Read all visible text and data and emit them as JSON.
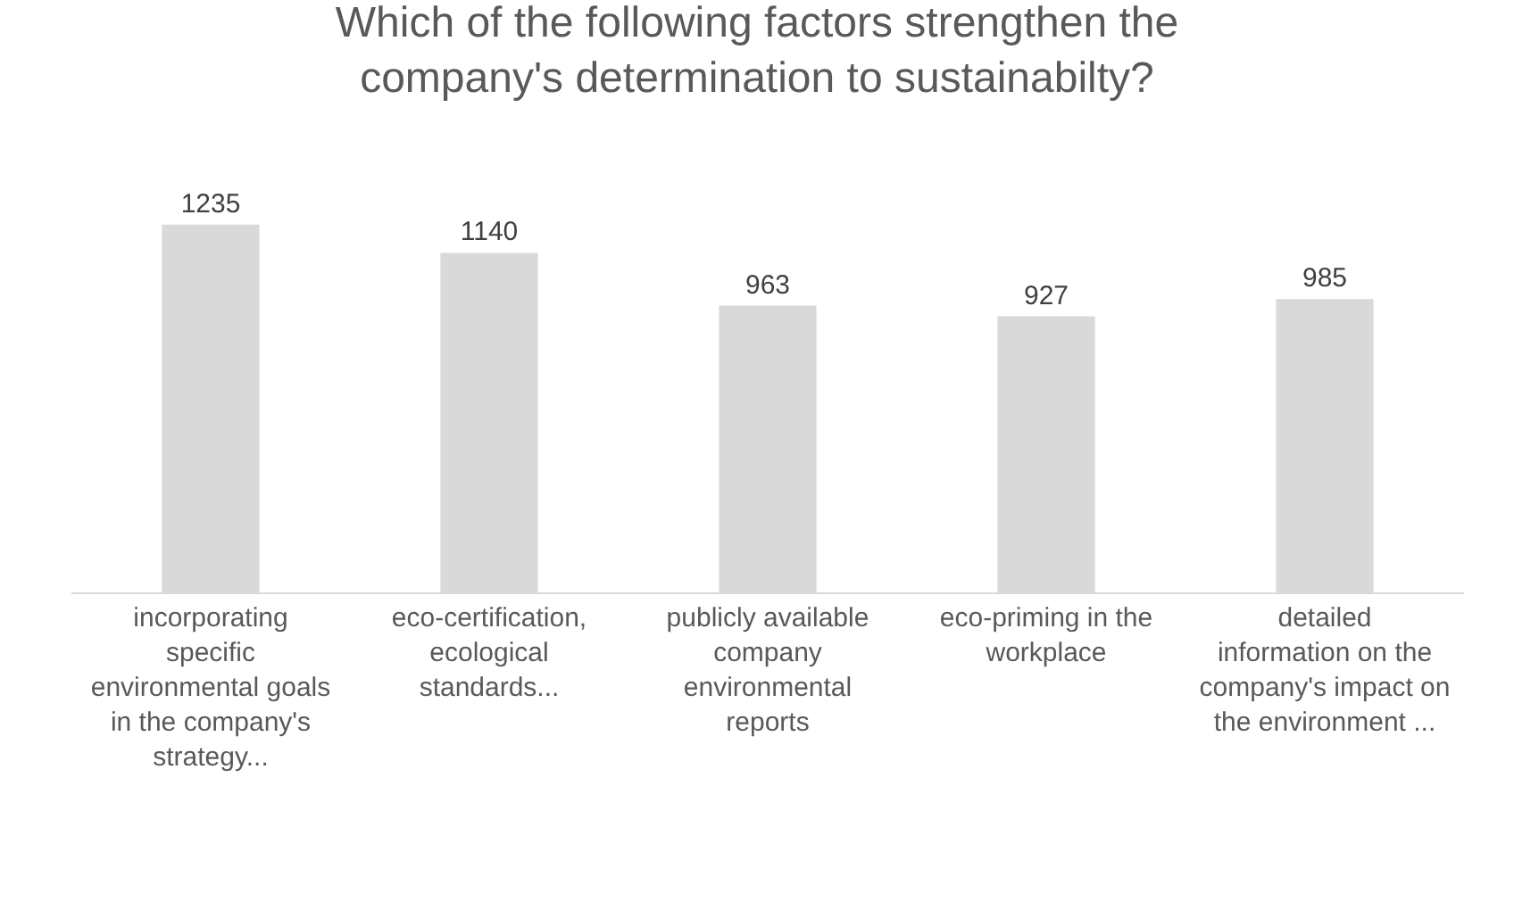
{
  "chart_data": {
    "type": "bar",
    "title": "Which of the following factors strengthen the company's determination to sustainabilty?",
    "categories": [
      "incorporating specific environmental goals in the company's strategy...",
      "eco-certification, ecological standards...",
      "publicly available company environmental reports",
      "eco-priming in the workplace",
      "detailed information on the company's impact on the environment ..."
    ],
    "values": [
      1235,
      1140,
      963,
      927,
      985
    ],
    "color": "#d9d9d9",
    "tick_labels": "x",
    "data_labels": true,
    "grid": false
  }
}
